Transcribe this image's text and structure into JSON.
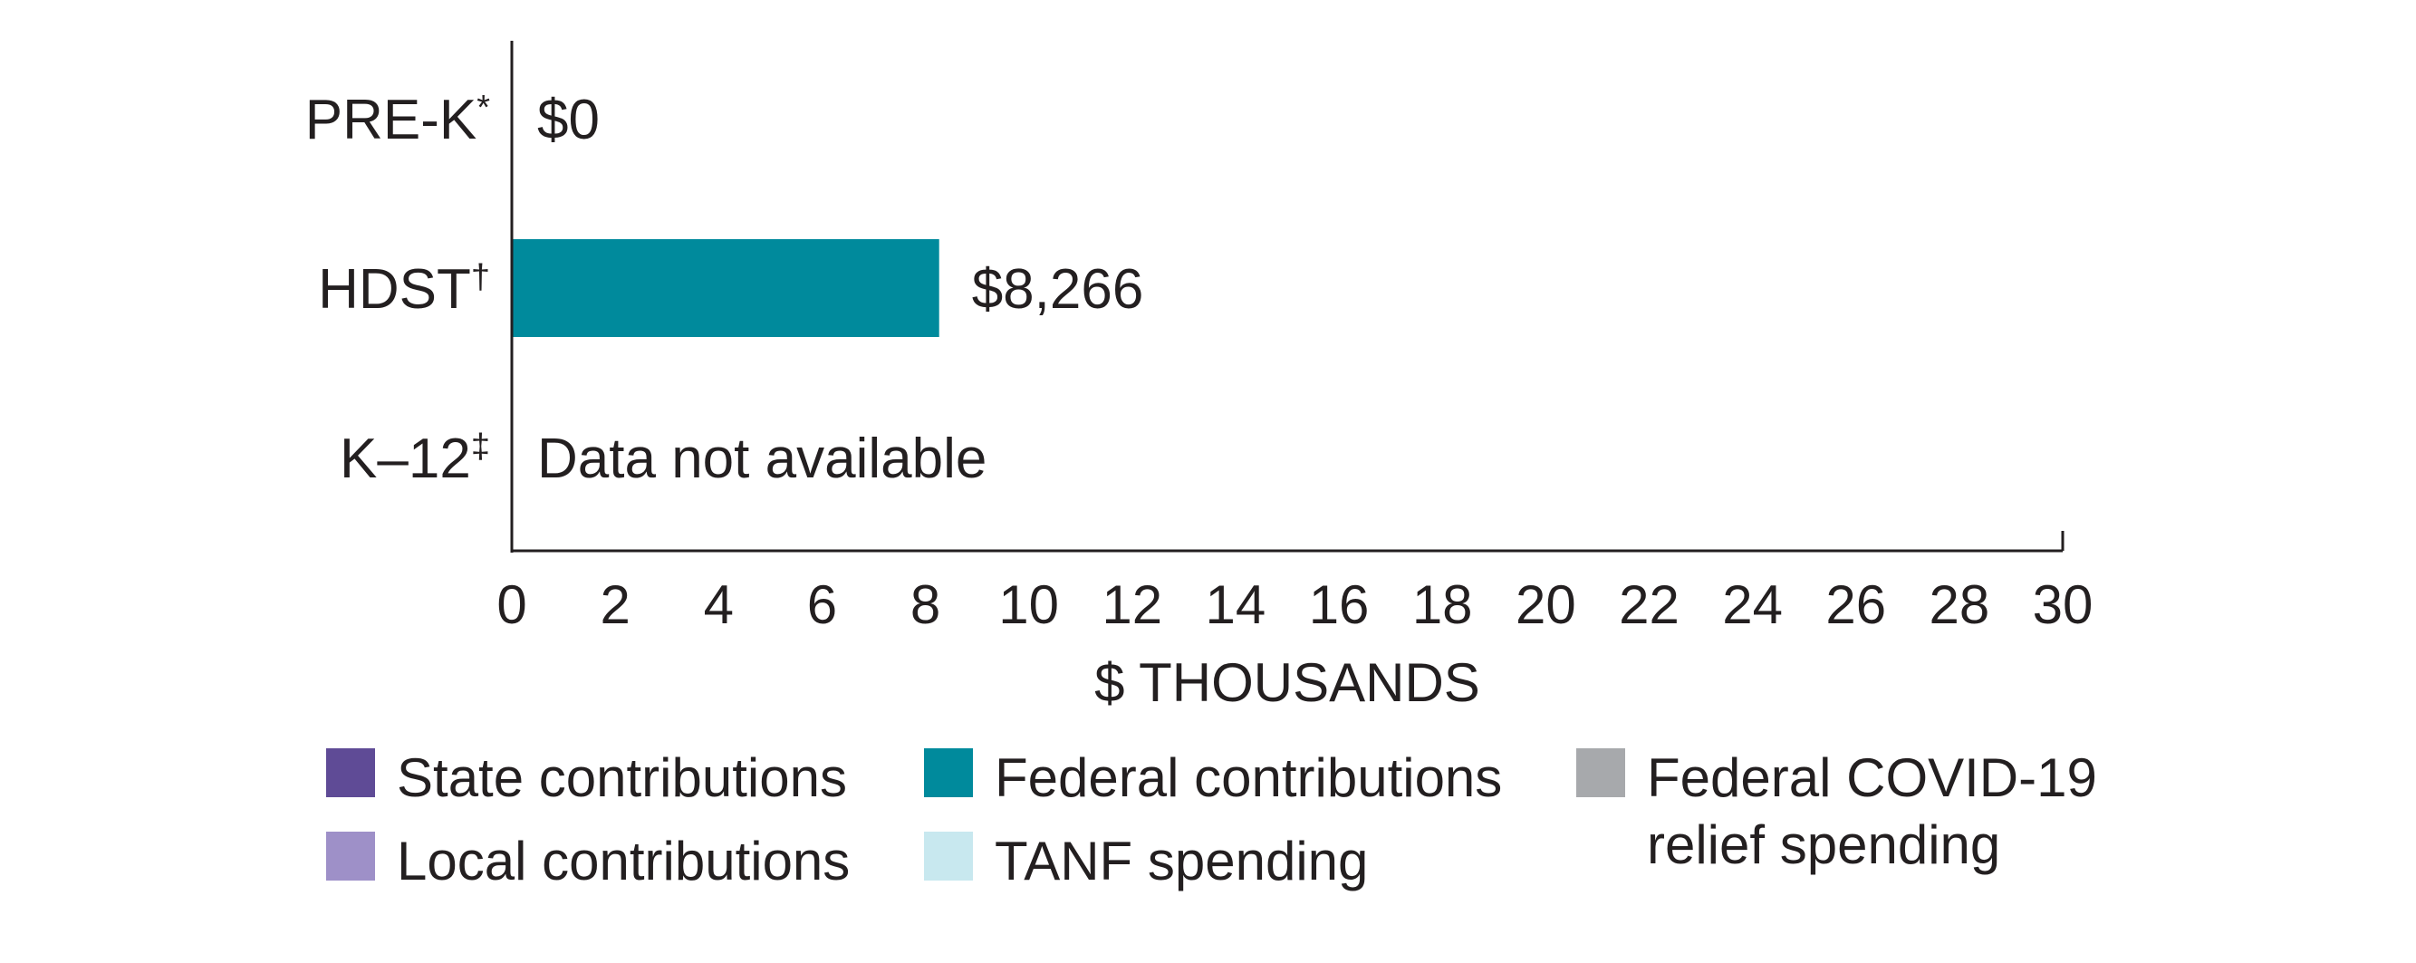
{
  "chart_data": {
    "type": "bar",
    "orientation": "horizontal",
    "categories": [
      "PRE-K*",
      "HDST†",
      "K–12‡"
    ],
    "series": [
      {
        "name": "Federal contributions",
        "color": "#008a9c",
        "values": [
          0,
          8.266,
          null
        ]
      }
    ],
    "data_labels": [
      "$0",
      "$8,266",
      "Data not available"
    ],
    "xlabel": "$ THOUSANDS",
    "xlim": [
      0,
      30
    ],
    "xticks": [
      0,
      2,
      4,
      6,
      8,
      10,
      12,
      14,
      16,
      18,
      20,
      22,
      24,
      26,
      28,
      30
    ],
    "grid": false,
    "legend_position": "bottom",
    "legend": [
      {
        "name": "State contributions",
        "color": "#5f4b96"
      },
      {
        "name": "Federal contributions",
        "color": "#008a9c"
      },
      {
        "name": "Federal COVID-19 relief spending",
        "color": "#a7a9ac"
      },
      {
        "name": "Local contributions",
        "color": "#9e90c8"
      },
      {
        "name": "TANF spending",
        "color": "#c8e8ef"
      }
    ]
  }
}
